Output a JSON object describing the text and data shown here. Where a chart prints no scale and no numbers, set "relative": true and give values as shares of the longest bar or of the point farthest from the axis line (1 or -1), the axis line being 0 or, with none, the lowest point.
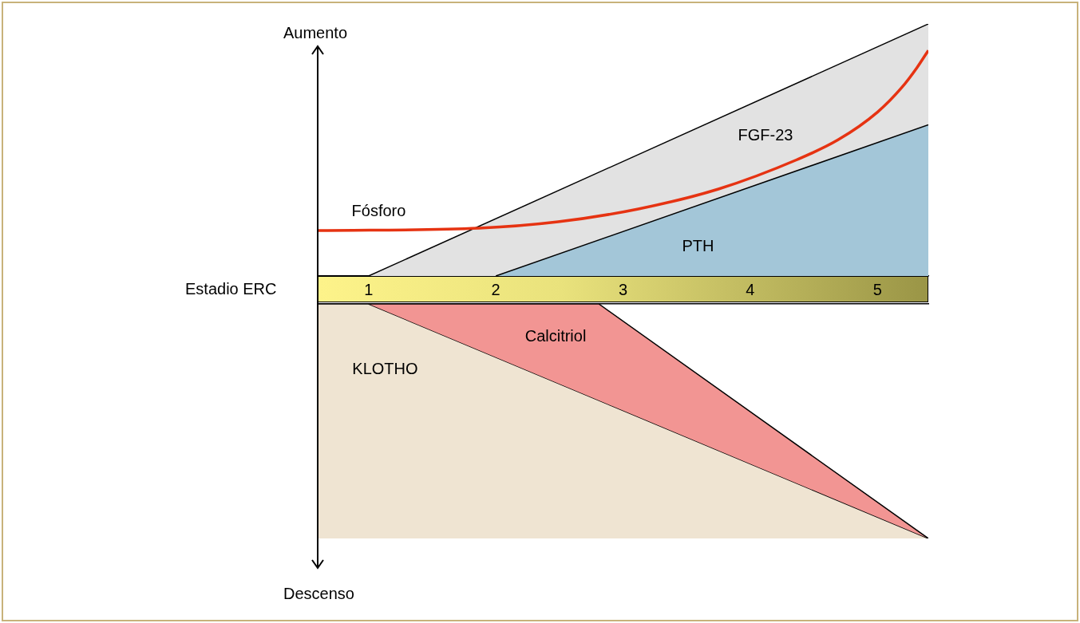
{
  "chart_data": [
    {
      "type": "area",
      "relative": true,
      "xlabel": "Estadio ERC",
      "ylabel": "Aumento",
      "xlim": [
        0.6,
        5.4
      ],
      "xticks": [
        1,
        2,
        3,
        4,
        5
      ],
      "tick_labels": "x",
      "grid": false,
      "legend": false,
      "marker": "none",
      "series": [
        {
          "name": "FGF-23",
          "color": "#e2e2e2",
          "x": [
            1,
            5.4
          ],
          "values": [
            0,
            1
          ]
        },
        {
          "name": "PTH",
          "color": "#a3c6d8",
          "x": [
            2,
            5.4
          ],
          "values": [
            0,
            0.6
          ]
        },
        {
          "name": "Fósforo",
          "type": "line",
          "color": "#e63312",
          "x": [
            0.6,
            1.87,
            2.49,
            3.12,
            3.75,
            4.37,
            4.69,
            5,
            5.19,
            5.31,
            5.4
          ],
          "values": [
            0.18,
            0.19,
            0.215,
            0.266,
            0.345,
            0.462,
            0.54,
            0.65,
            0.747,
            0.826,
            0.895
          ]
        }
      ]
    },
    {
      "type": "area",
      "relative": true,
      "ylabel": "Descenso",
      "xlim": [
        0.6,
        5.4
      ],
      "tick_labels": false,
      "grid": false,
      "legend": false,
      "marker": "none",
      "series": [
        {
          "name": "KLOTHO",
          "color": "#efe4d2",
          "x": [
            0.6,
            0.6,
            1,
            5.4
          ],
          "values": [
            -1,
            0,
            0,
            -1
          ]
        },
        {
          "name": "Calcitriol",
          "color": "#f29593",
          "x": [
            1,
            2.81,
            5.4
          ],
          "values": [
            0,
            0,
            -1
          ]
        }
      ]
    }
  ]
}
